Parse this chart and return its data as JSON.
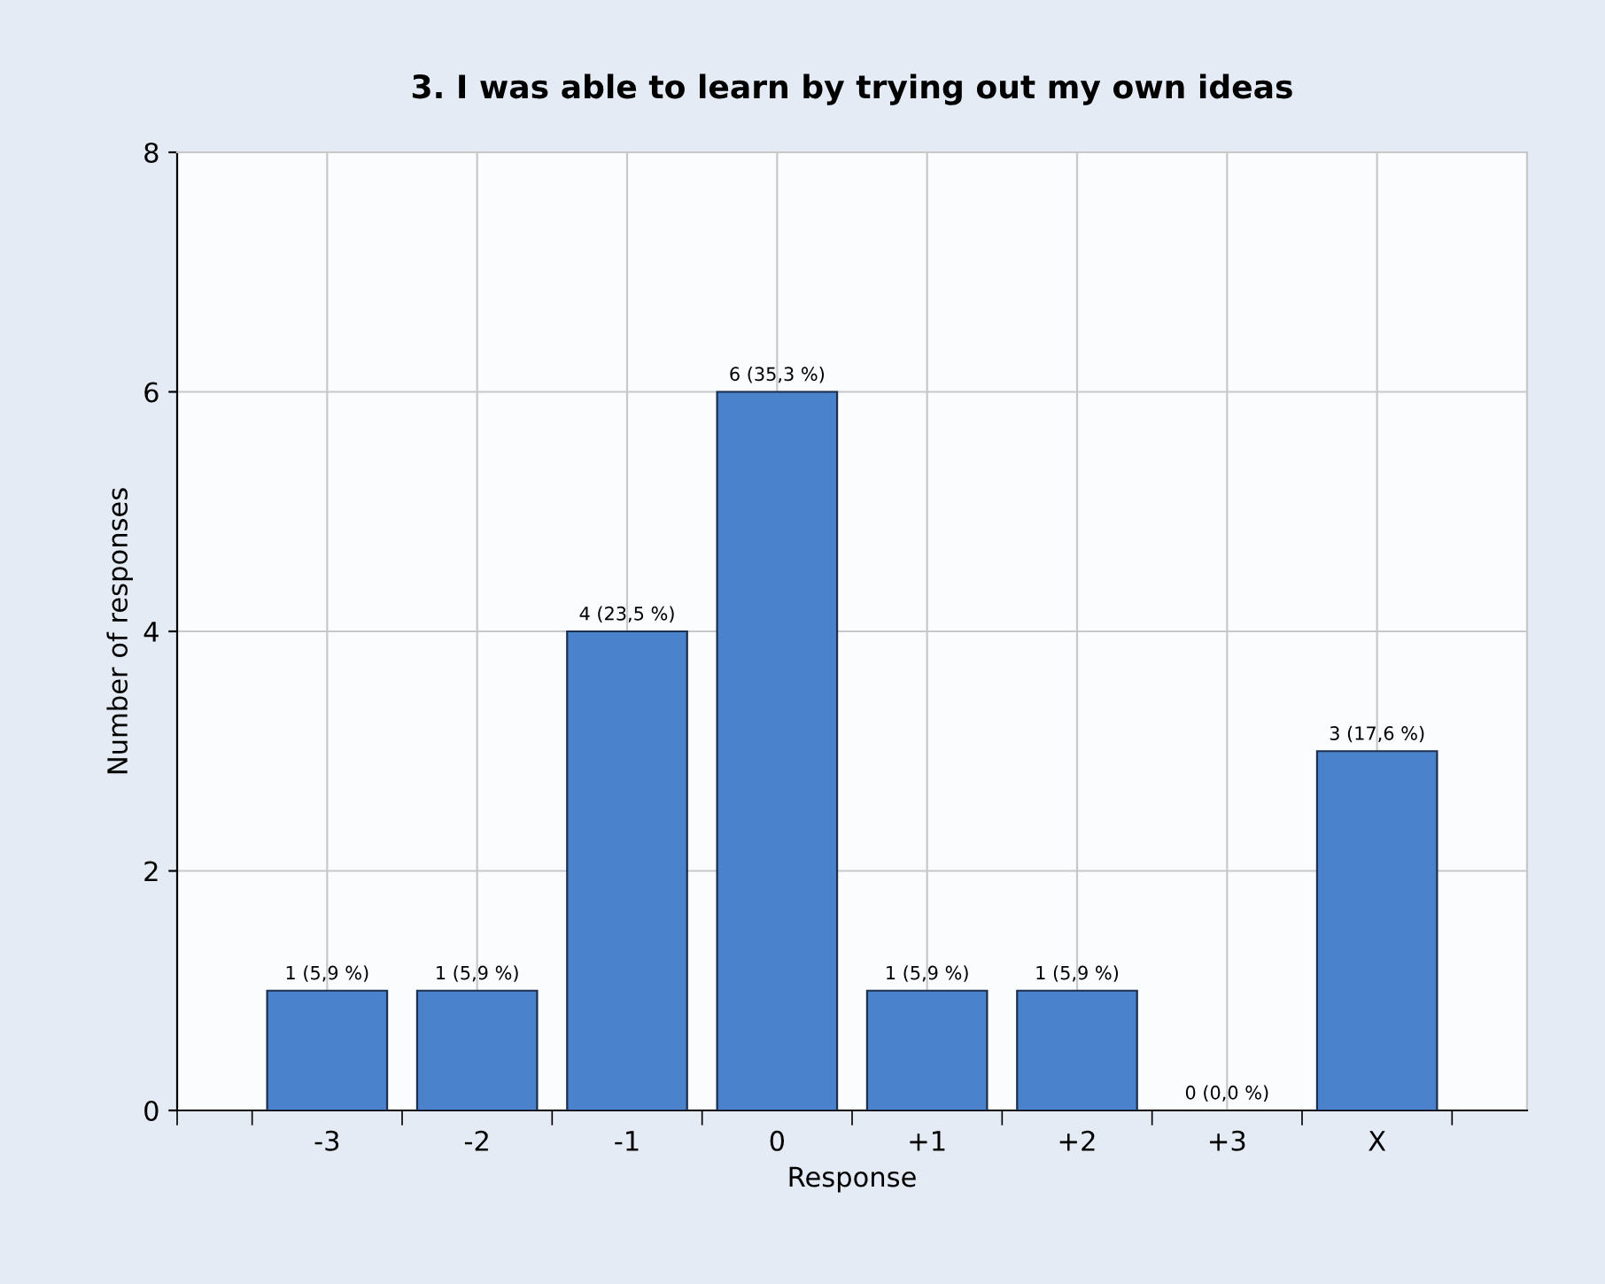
{
  "chart_data": {
    "type": "bar",
    "title": "3. I was able to learn by trying out my own ideas",
    "xlabel": "Response",
    "ylabel": "Number of responses",
    "categories": [
      "-3",
      "-2",
      "-1",
      "0",
      "+1",
      "+2",
      "+3",
      "X"
    ],
    "values": [
      1,
      1,
      4,
      6,
      1,
      1,
      0,
      3
    ],
    "value_labels": [
      "1 (5,9 %)",
      "1 (5,9 %)",
      "4 (23,5 %)",
      "6 (35,3 %)",
      "1 (5,9 %)",
      "1 (5,9 %)",
      "0 (0,0 %)",
      "3 (17,6 %)"
    ],
    "color": "#4a82cc",
    "ylim": [
      0,
      8
    ],
    "yticks": [
      0,
      2,
      4,
      6,
      8
    ],
    "grid": true
  }
}
